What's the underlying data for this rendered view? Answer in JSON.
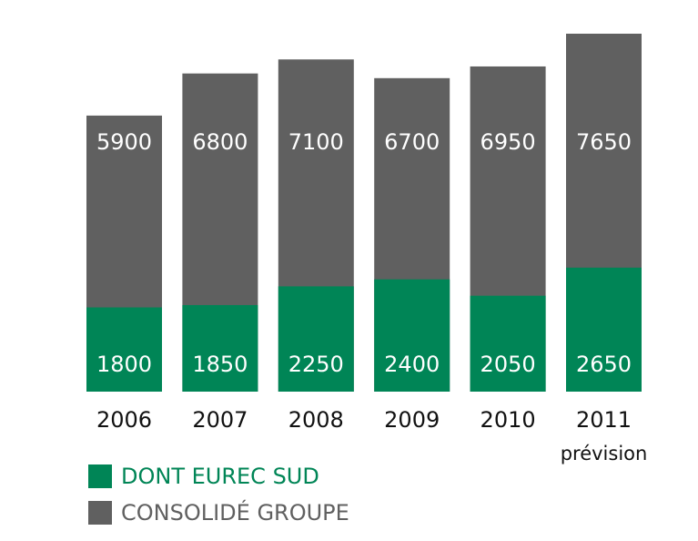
{
  "chart_data": {
    "type": "bar",
    "overlap": true,
    "categories": [
      "2006",
      "2007",
      "2008",
      "2009",
      "2010",
      "2011"
    ],
    "annotation": "prévision",
    "series": [
      {
        "name": "DONT EUREC SUD",
        "color": "#008556",
        "values": [
          1800,
          1850,
          2250,
          2400,
          2050,
          2650
        ]
      },
      {
        "name": "CONSOLIDÉ GROUPE",
        "color": "#606060",
        "values": [
          5900,
          6800,
          7100,
          6700,
          6950,
          7650
        ]
      }
    ]
  }
}
